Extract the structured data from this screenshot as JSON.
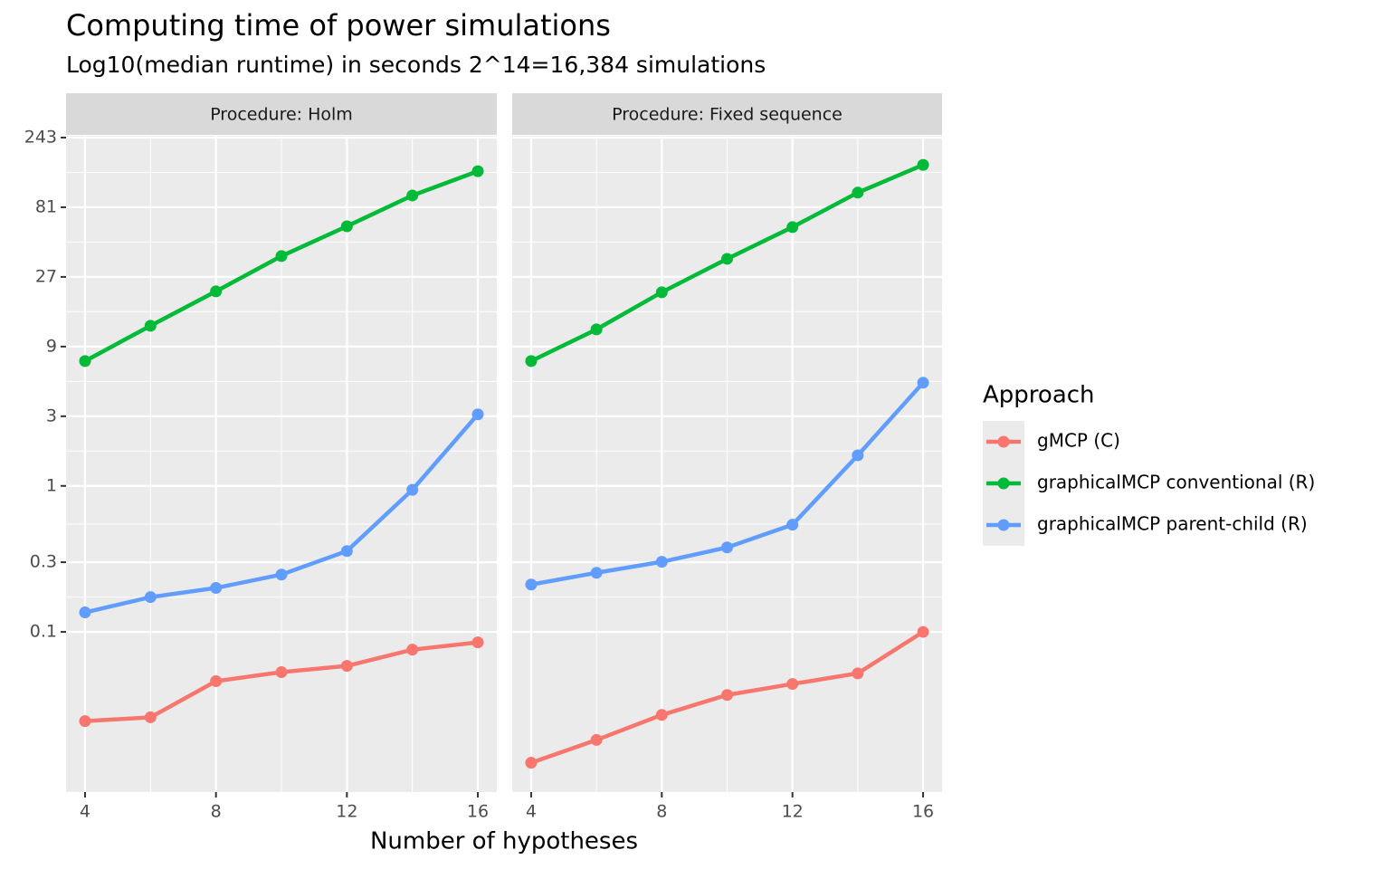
{
  "chart_data": {
    "type": "line",
    "title": "Computing time of power simulations",
    "subtitle": "Log10(median runtime) in seconds 2^14=16,384 simulations",
    "x_label": "Number of hypotheses",
    "legend_title": "Approach",
    "y_scale": "log",
    "grid": true,
    "legend_position": "right",
    "x": [
      4,
      6,
      8,
      10,
      12,
      14,
      16
    ],
    "xlim": [
      3.42,
      16.58
    ],
    "xticks": [
      4,
      8,
      12,
      16
    ],
    "ylim": [
      0.008,
      250
    ],
    "yticks": [
      0.1,
      0.3,
      1,
      3,
      9,
      27,
      81,
      243
    ],
    "series": [
      {
        "name": "gMCP (C)",
        "color": "#f8766d"
      },
      {
        "name": "graphicalMCP conventional (R)",
        "color": "#00ba38"
      },
      {
        "name": "graphicalMCP parent-child (R)",
        "color": "#619cff"
      }
    ],
    "facets": [
      {
        "title": "Procedure: Holm",
        "values": [
          [
            0.0245,
            0.026,
            0.046,
            0.053,
            0.0585,
            0.0756,
            0.0848
          ],
          [
            7.16,
            12.5,
            21.5,
            37.5,
            60,
            97.5,
            143
          ],
          [
            0.136,
            0.173,
            0.2,
            0.247,
            0.358,
            0.94,
            3.09
          ]
        ]
      },
      {
        "title": "Procedure: Fixed sequence",
        "values": [
          [
            0.0127,
            0.0182,
            0.027,
            0.037,
            0.044,
            0.052,
            0.1
          ],
          [
            7.16,
            11.8,
            21.2,
            35.9,
            59.2,
            102,
            158
          ],
          [
            0.211,
            0.254,
            0.302,
            0.379,
            0.542,
            1.62,
            5.09
          ]
        ]
      }
    ]
  }
}
